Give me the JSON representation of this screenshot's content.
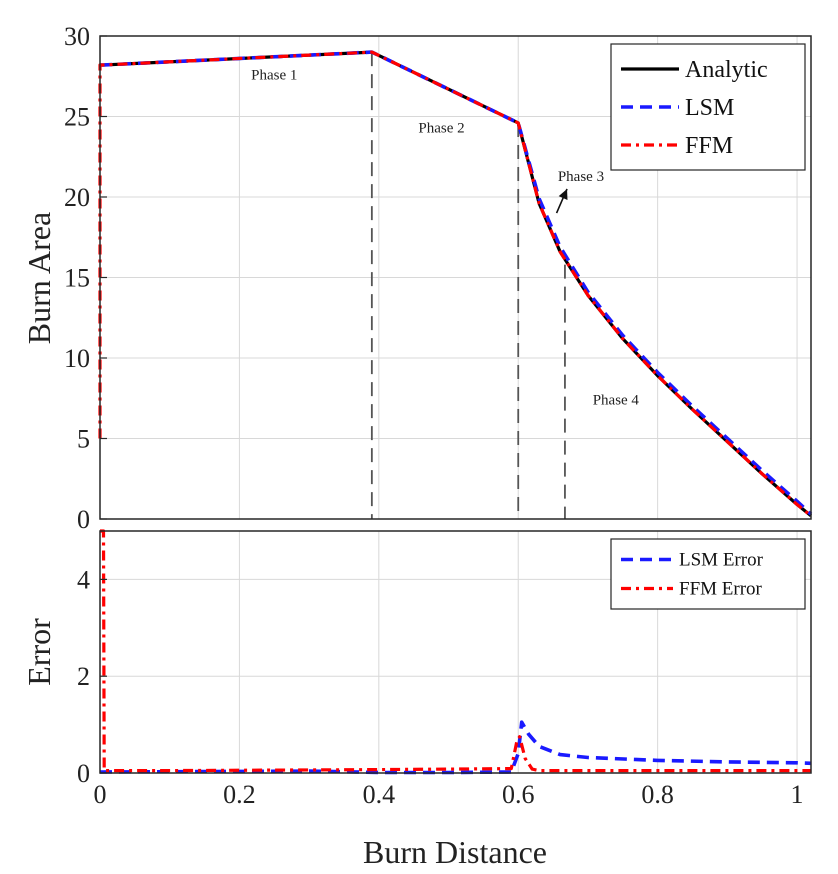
{
  "chart_data": [
    {
      "type": "line",
      "xlabel": "",
      "ylabel": "Burn Area",
      "xlim": [
        0,
        1.02
      ],
      "ylim": [
        0,
        30
      ],
      "xticks": [
        0,
        0.2,
        0.4,
        0.6,
        0.8,
        1
      ],
      "xtick_labels": [
        "",
        "",
        "",
        "",
        "",
        ""
      ],
      "yticks": [
        0,
        5,
        10,
        15,
        20,
        25,
        30
      ],
      "ytick_labels": [
        "0",
        "5",
        "10",
        "15",
        "20",
        "25",
        "30"
      ],
      "grid": true,
      "legend": "top-right",
      "series": [
        {
          "name": "Analytic",
          "color": "#000000",
          "style": "solid",
          "x": [
            0.0,
            0.005,
            0.39,
            0.6,
            0.63,
            0.66,
            0.7,
            0.75,
            0.8,
            0.85,
            0.9,
            0.95,
            1.0,
            1.02
          ],
          "y": [
            28.2,
            28.2,
            29.0,
            24.6,
            19.6,
            16.6,
            13.9,
            11.2,
            8.9,
            6.8,
            4.8,
            2.8,
            0.9,
            0.2
          ]
        },
        {
          "name": "LSM",
          "color": "#1a1aff",
          "style": "dashed",
          "x": [
            0.0,
            0.005,
            0.39,
            0.6,
            0.63,
            0.66,
            0.7,
            0.75,
            0.8,
            0.85,
            0.9,
            0.95,
            1.0,
            1.02
          ],
          "y": [
            28.2,
            28.2,
            29.0,
            24.6,
            19.9,
            16.9,
            14.1,
            11.4,
            9.1,
            7.0,
            5.0,
            3.0,
            1.1,
            0.3
          ]
        },
        {
          "name": "FFM",
          "color": "#ff0000",
          "style": "dashdot",
          "x": [
            0.0,
            0.0,
            0.005,
            0.39,
            0.6,
            0.63,
            0.66,
            0.7,
            0.75,
            0.8,
            0.85,
            0.9,
            0.95,
            1.0,
            1.02
          ],
          "y": [
            5.0,
            28.2,
            28.2,
            29.0,
            24.6,
            19.6,
            16.6,
            13.9,
            11.2,
            8.9,
            6.8,
            4.8,
            2.8,
            0.9,
            0.2
          ]
        }
      ],
      "phase_lines": [
        {
          "x": 0.39,
          "y_top": 29.0
        },
        {
          "x": 0.6,
          "y_top": 24.6
        },
        {
          "x": 0.667,
          "y_top": 15.8
        }
      ],
      "annotations": [
        {
          "text": "Phase 1",
          "x": 0.25,
          "y": 27.3
        },
        {
          "text": "Phase 2",
          "x": 0.49,
          "y": 24.0
        },
        {
          "text": "Phase 3",
          "x": 0.69,
          "y": 21.0
        },
        {
          "text": "Phase 4",
          "x": 0.74,
          "y": 7.1
        }
      ],
      "arrow": {
        "from": [
          0.655,
          19.0
        ],
        "to": [
          0.67,
          20.5
        ]
      }
    },
    {
      "type": "line",
      "xlabel": "Burn Distance",
      "ylabel": "Error",
      "xlim": [
        0,
        1.02
      ],
      "ylim": [
        0,
        5
      ],
      "xticks": [
        0,
        0.2,
        0.4,
        0.6,
        0.8,
        1
      ],
      "xtick_labels": [
        "0",
        "0.2",
        "0.4",
        "0.6",
        "0.8",
        "1"
      ],
      "yticks": [
        0,
        2,
        4
      ],
      "ytick_labels": [
        "0",
        "2",
        "4"
      ],
      "grid": true,
      "legend": "top-right",
      "series": [
        {
          "name": "LSM Error",
          "color": "#1a1aff",
          "style": "dashed",
          "x": [
            0.0,
            0.3,
            0.4,
            0.5,
            0.59,
            0.6,
            0.605,
            0.615,
            0.63,
            0.66,
            0.7,
            0.8,
            0.9,
            1.0,
            1.02
          ],
          "y": [
            0.02,
            0.04,
            0.01,
            0.01,
            0.02,
            0.4,
            1.05,
            0.8,
            0.55,
            0.38,
            0.32,
            0.26,
            0.23,
            0.21,
            0.2
          ]
        },
        {
          "name": "FFM Error",
          "color": "#ff0000",
          "style": "dashdot",
          "x": [
            0.0,
            0.0,
            0.005,
            0.006,
            0.1,
            0.4,
            0.5,
            0.59,
            0.598,
            0.602,
            0.61,
            0.62,
            0.63,
            0.7,
            0.8,
            0.9,
            1.0,
            1.02
          ],
          "y": [
            5.0,
            5.0,
            5.0,
            0.05,
            0.05,
            0.07,
            0.08,
            0.09,
            0.65,
            0.75,
            0.3,
            0.08,
            0.05,
            0.05,
            0.05,
            0.05,
            0.05,
            0.05
          ]
        }
      ]
    }
  ]
}
